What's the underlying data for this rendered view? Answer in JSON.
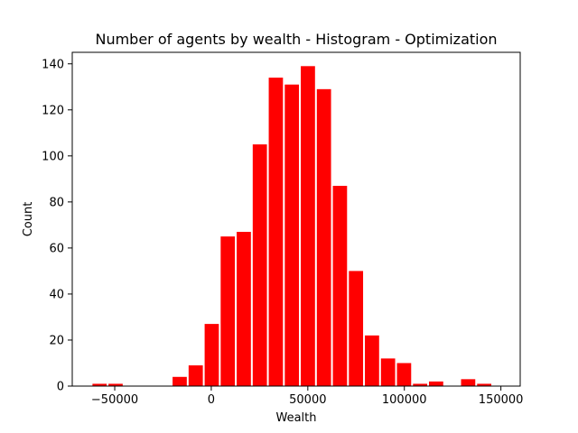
{
  "chart_data": {
    "type": "bar",
    "title": "Number of agents by wealth - Histogram - Optimization",
    "xlabel": "Wealth",
    "ylabel": "Count",
    "xlim": [
      -72000,
      160000
    ],
    "ylim": [
      0,
      145
    ],
    "xticks": [
      -50000,
      0,
      50000,
      100000,
      150000
    ],
    "xtick_labels": [
      "−50000",
      "0",
      "50000",
      "100000",
      "150000"
    ],
    "yticks": [
      0,
      20,
      40,
      60,
      80,
      100,
      120,
      140
    ],
    "yticks_labels": [
      "0",
      "20",
      "40",
      "60",
      "80",
      "100",
      "120",
      "140"
    ],
    "grid": false,
    "bar_color": "#ff0000",
    "bins": [
      {
        "x0": -62000,
        "x1": -53700,
        "count": 1
      },
      {
        "x0": -53700,
        "x1": -45400,
        "count": 1
      },
      {
        "x0": -45400,
        "x1": -37100,
        "count": 0
      },
      {
        "x0": -37100,
        "x1": -28800,
        "count": 0
      },
      {
        "x0": -28800,
        "x1": -20500,
        "count": 0
      },
      {
        "x0": -20500,
        "x1": -12200,
        "count": 4
      },
      {
        "x0": -12200,
        "x1": -3900,
        "count": 9
      },
      {
        "x0": -3900,
        "x1": 4400,
        "count": 27
      },
      {
        "x0": 4400,
        "x1": 12700,
        "count": 65
      },
      {
        "x0": 12700,
        "x1": 21000,
        "count": 67
      },
      {
        "x0": 21000,
        "x1": 29300,
        "count": 105
      },
      {
        "x0": 29300,
        "x1": 37600,
        "count": 134
      },
      {
        "x0": 37600,
        "x1": 45900,
        "count": 131
      },
      {
        "x0": 45900,
        "x1": 54200,
        "count": 139
      },
      {
        "x0": 54200,
        "x1": 62500,
        "count": 129
      },
      {
        "x0": 62500,
        "x1": 70800,
        "count": 87
      },
      {
        "x0": 70800,
        "x1": 79100,
        "count": 50
      },
      {
        "x0": 79100,
        "x1": 87400,
        "count": 22
      },
      {
        "x0": 87400,
        "x1": 95700,
        "count": 12
      },
      {
        "x0": 95700,
        "x1": 104000,
        "count": 10
      },
      {
        "x0": 104000,
        "x1": 112300,
        "count": 1
      },
      {
        "x0": 112300,
        "x1": 120600,
        "count": 2
      },
      {
        "x0": 120600,
        "x1": 128900,
        "count": 0
      },
      {
        "x0": 128900,
        "x1": 137200,
        "count": 3
      },
      {
        "x0": 137200,
        "x1": 145500,
        "count": 1
      }
    ]
  }
}
